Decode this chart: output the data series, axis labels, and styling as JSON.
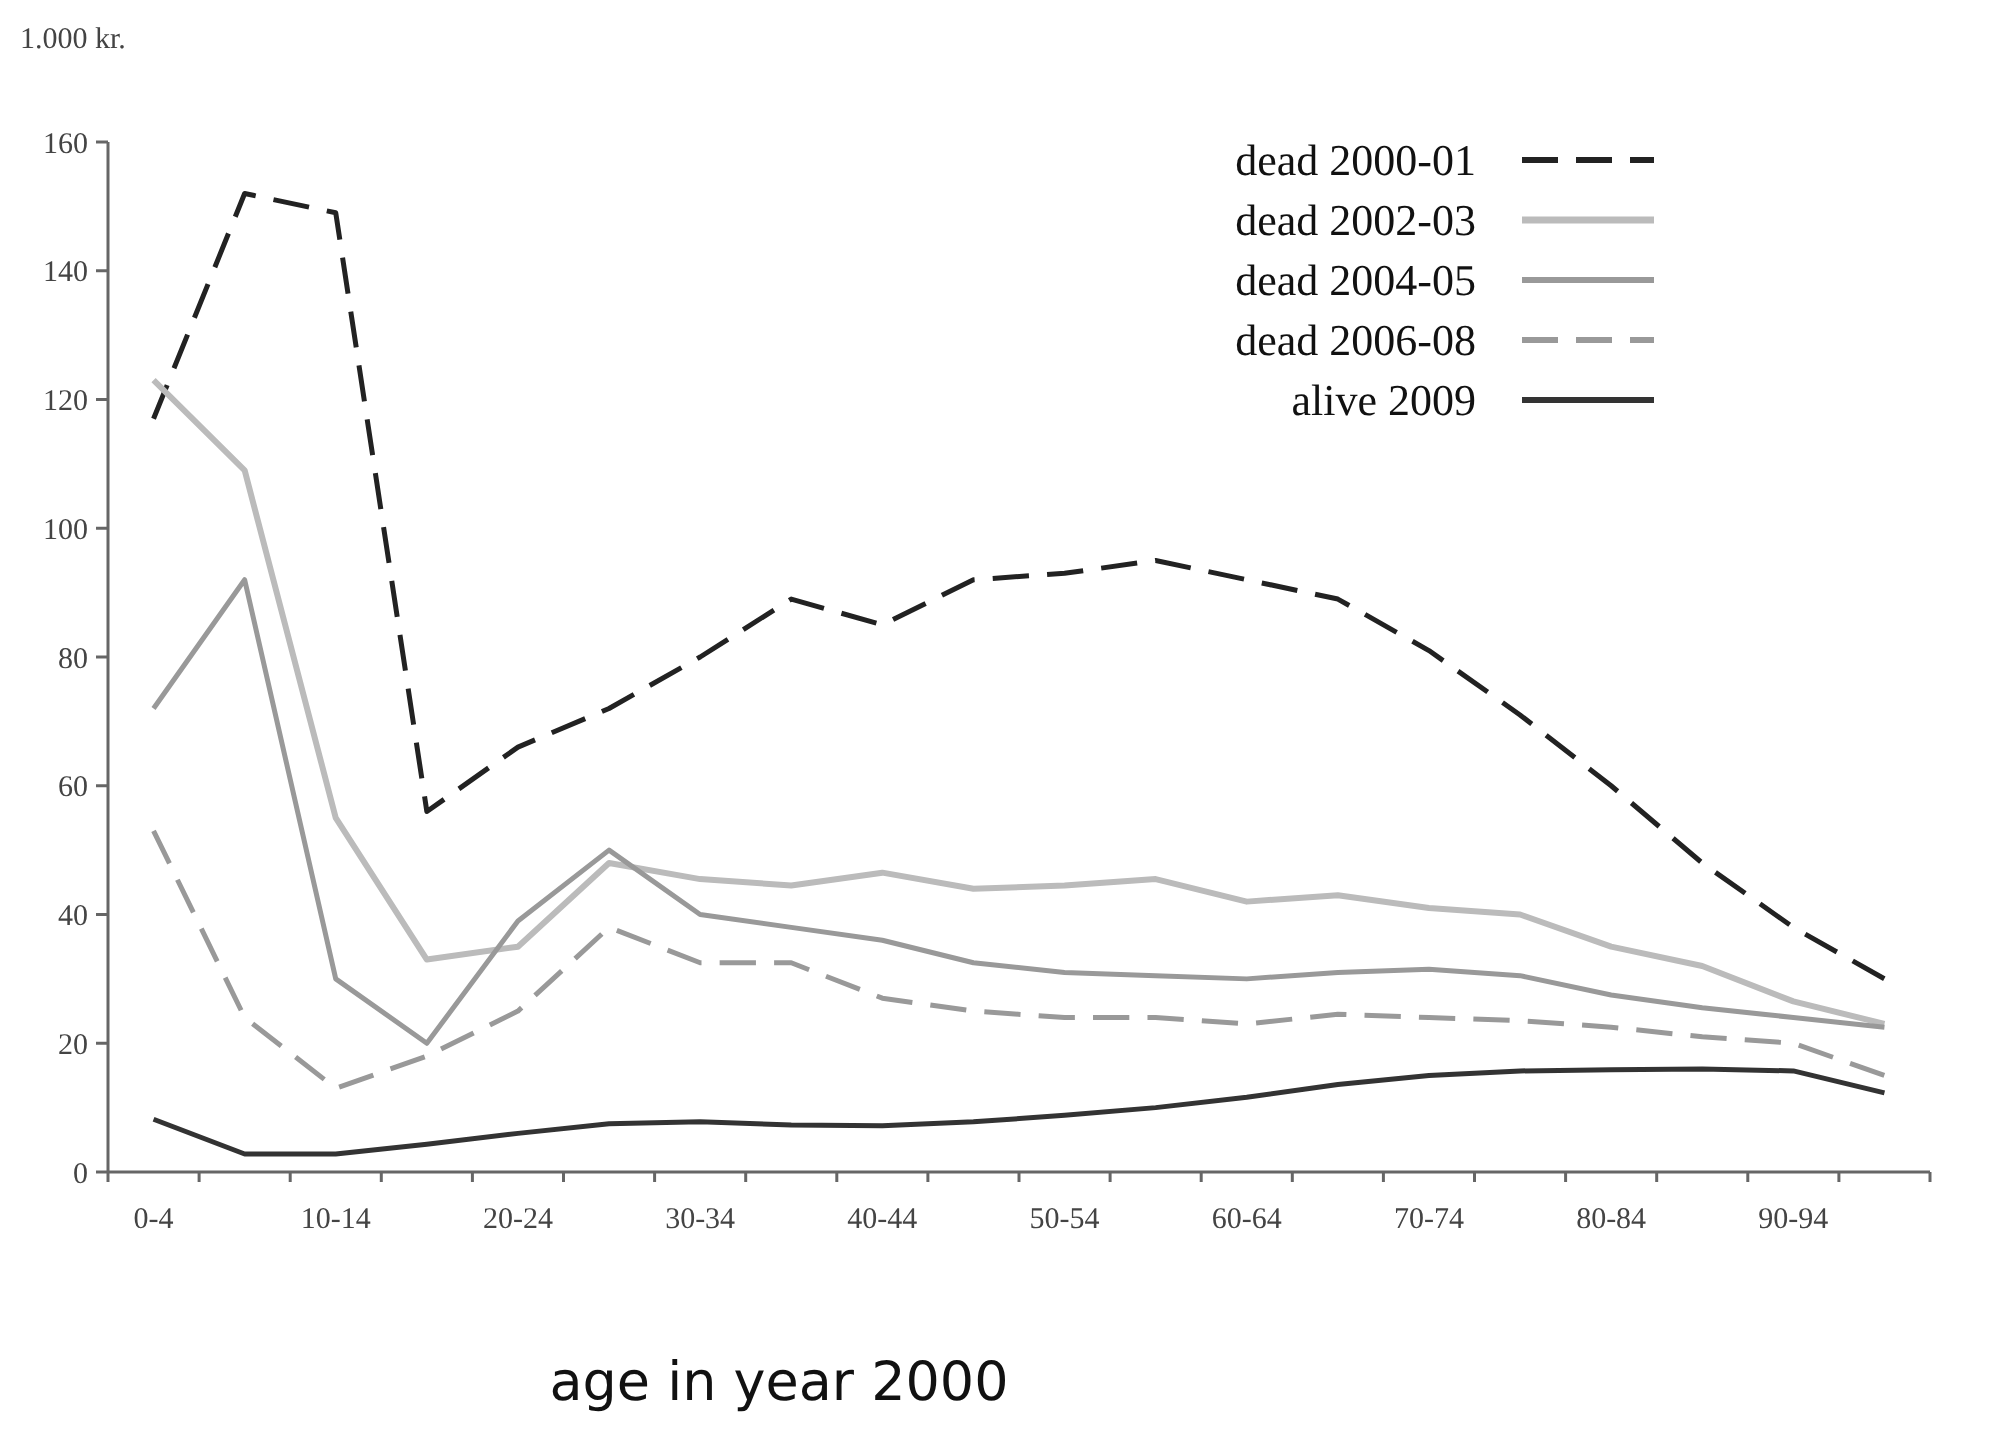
{
  "chart_data": {
    "type": "line",
    "ylabel": "1.000 kr.",
    "xlabel": "age in year 2000",
    "categories": [
      "0-4",
      null,
      "10-14",
      null,
      "20-24",
      null,
      "30-34",
      null,
      "40-44",
      null,
      "50-54",
      null,
      "60-64",
      null,
      "70-74",
      null,
      "80-84",
      null,
      "90-94",
      null
    ],
    "ylim": [
      0,
      160
    ],
    "yticks": [
      0,
      20,
      40,
      60,
      80,
      100,
      120,
      140,
      160
    ],
    "grid": false,
    "legend": "top right",
    "marker": "none",
    "series": [
      {
        "name": "dead 2000-01",
        "color": "#222222",
        "line_style": "dashed",
        "values": [
          117,
          152,
          149,
          56,
          66,
          72,
          80,
          89,
          85,
          92,
          93,
          95,
          92,
          89,
          81,
          71,
          60,
          48,
          38,
          30
        ]
      },
      {
        "name": "dead 2002-03",
        "color": "#bbbbbb",
        "line_style": "solid",
        "values": [
          123,
          109,
          55,
          33,
          35,
          48,
          45.5,
          44.5,
          46.5,
          44,
          44.5,
          45.5,
          42,
          43,
          41,
          40,
          35,
          32,
          26.5,
          23
        ]
      },
      {
        "name": "dead 2004-05",
        "color": "#999999",
        "line_style": "solid",
        "values": [
          72,
          92,
          30,
          20,
          39,
          50,
          40,
          38,
          36,
          32.5,
          31,
          30.5,
          30,
          31,
          31.5,
          30.5,
          27.5,
          25.5,
          24,
          22.5
        ]
      },
      {
        "name": "dead 2006-08",
        "color": "#999999",
        "line_style": "dashed",
        "values": [
          53,
          24,
          13,
          18,
          25,
          38,
          32.5,
          32.5,
          27,
          25,
          24,
          24,
          23,
          24.5,
          24,
          23.5,
          22.5,
          21,
          20,
          15
        ]
      },
      {
        "name": "alive 2009",
        "color": "#333333",
        "line_style": "solid",
        "values": [
          8.2,
          2.8,
          2.8,
          4.3,
          6,
          7.5,
          7.8,
          7.3,
          7.2,
          7.8,
          8.8,
          10,
          11.6,
          13.6,
          15,
          15.7,
          15.9,
          16,
          15.7,
          12.3
        ]
      }
    ]
  }
}
